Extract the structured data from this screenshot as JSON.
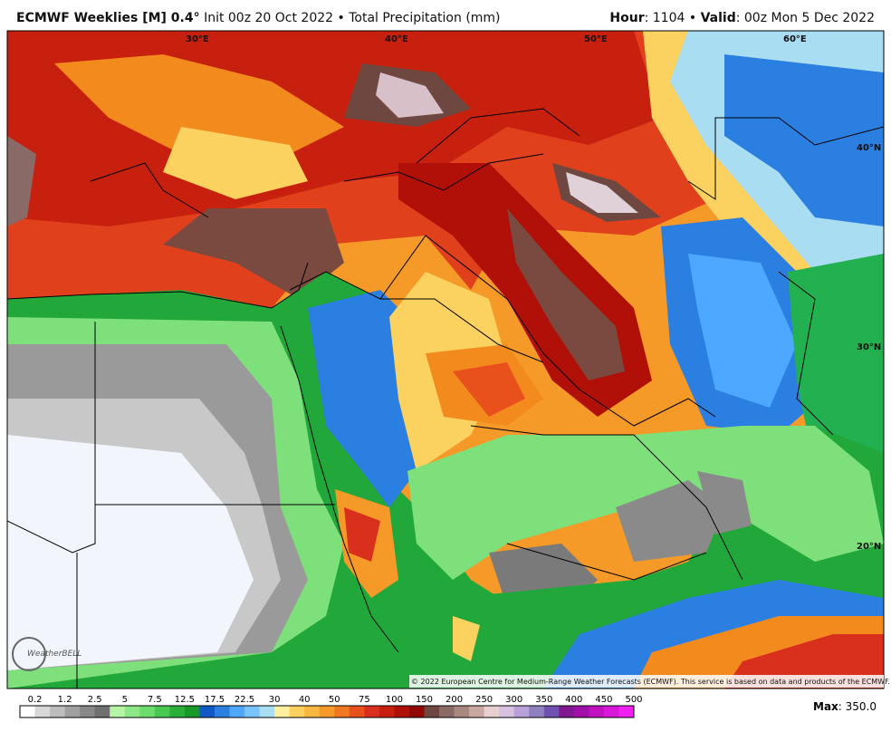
{
  "header": {
    "title": "ECMWF Weeklies [M] 0.4°",
    "subtitle": "Init 00z 20 Oct 2022 • Total Precipitation (mm)",
    "hour_label": "Hour",
    "hour": ": 1104 • ",
    "valid_label": "Valid",
    "valid": ": 00z Mon 5 Dec 2022"
  },
  "map": {
    "lon_labels": [
      "30°E",
      "40°E",
      "50°E",
      "60°E"
    ],
    "lat_labels": [
      "40°N",
      "30°N",
      "20°N"
    ],
    "logo": "WeatherBELL",
    "credit": "© 2022 European Centre for Medium-Range Weather Forecasts (ECMWF). This service is based on data and products of the ECMWF."
  },
  "legend": {
    "labels": [
      "0.2",
      "1.2",
      "2.5",
      "5",
      "7.5",
      "12.5",
      "17.5",
      "22.5",
      "30",
      "40",
      "50",
      "75",
      "100",
      "150",
      "200",
      "250",
      "300",
      "350",
      "400",
      "450",
      "500"
    ],
    "max_label": "Max",
    "max_value": ": 350.0"
  }
}
